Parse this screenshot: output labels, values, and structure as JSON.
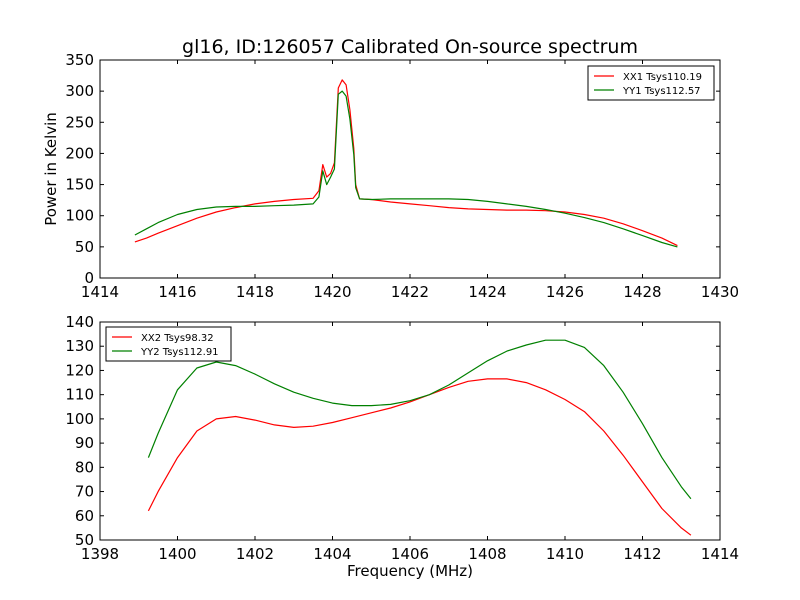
{
  "title": "gl16, ID:126057 Calibrated On-source spectrum",
  "chart_data": [
    {
      "type": "line",
      "ylabel": "Power in Kelvin",
      "xlabel": "",
      "xlim": [
        1414,
        1430
      ],
      "ylim": [
        0,
        350
      ],
      "xticks": [
        1414,
        1416,
        1418,
        1420,
        1422,
        1424,
        1426,
        1428,
        1430
      ],
      "yticks": [
        0,
        50,
        100,
        150,
        200,
        250,
        300,
        350
      ],
      "legend_position": "top-right",
      "grid": false,
      "series": [
        {
          "name": "XX1 Tsys110.19",
          "color": "#ff0000",
          "x": [
            1414.9,
            1415.2,
            1415.5,
            1416.0,
            1416.5,
            1417.0,
            1417.5,
            1418.0,
            1418.5,
            1419.0,
            1419.5,
            1419.65,
            1419.75,
            1419.85,
            1419.95,
            1420.05,
            1420.15,
            1420.25,
            1420.35,
            1420.45,
            1420.55,
            1420.6,
            1420.7,
            1421.0,
            1421.5,
            1422.0,
            1422.5,
            1423.0,
            1423.5,
            1424.0,
            1424.5,
            1425.0,
            1425.5,
            1426.0,
            1426.5,
            1427.0,
            1427.5,
            1428.0,
            1428.5,
            1428.9
          ],
          "values": [
            58,
            64,
            72,
            84,
            96,
            106,
            113,
            119,
            123,
            126,
            128,
            140,
            182,
            162,
            168,
            185,
            305,
            318,
            310,
            270,
            208,
            150,
            127,
            126,
            122,
            119,
            116,
            113,
            111,
            110,
            109,
            109,
            108,
            106,
            102,
            96,
            87,
            76,
            64,
            52
          ]
        },
        {
          "name": "YY1 Tsys112.57",
          "color": "#008000",
          "x": [
            1414.9,
            1415.2,
            1415.5,
            1416.0,
            1416.5,
            1417.0,
            1417.5,
            1418.0,
            1418.5,
            1419.0,
            1419.5,
            1419.65,
            1419.75,
            1419.85,
            1419.95,
            1420.05,
            1420.15,
            1420.25,
            1420.35,
            1420.45,
            1420.55,
            1420.6,
            1420.7,
            1421.0,
            1421.5,
            1422.0,
            1422.5,
            1423.0,
            1423.5,
            1424.0,
            1424.5,
            1425.0,
            1425.5,
            1426.0,
            1426.5,
            1427.0,
            1427.5,
            1428.0,
            1428.5,
            1428.9
          ],
          "values": [
            69,
            79,
            89,
            102,
            110,
            114,
            115,
            115,
            116,
            117,
            119,
            130,
            172,
            150,
            162,
            175,
            295,
            300,
            292,
            255,
            198,
            145,
            127,
            126,
            127,
            127,
            127,
            127,
            126,
            123,
            119,
            115,
            110,
            104,
            97,
            89,
            79,
            68,
            57,
            50
          ]
        }
      ]
    },
    {
      "type": "line",
      "ylabel": "",
      "xlabel": "Frequency (MHz)",
      "xlim": [
        1398,
        1414
      ],
      "ylim": [
        50,
        140
      ],
      "xticks": [
        1398,
        1400,
        1402,
        1404,
        1406,
        1408,
        1410,
        1412,
        1414
      ],
      "yticks": [
        50,
        60,
        70,
        80,
        90,
        100,
        110,
        120,
        130,
        140
      ],
      "legend_position": "top-left",
      "grid": false,
      "series": [
        {
          "name": "XX2 Tsys98.32",
          "color": "#ff0000",
          "x": [
            1399.25,
            1399.5,
            1400.0,
            1400.5,
            1401.0,
            1401.5,
            1402.0,
            1402.5,
            1403.0,
            1403.5,
            1404.0,
            1404.5,
            1405.0,
            1405.5,
            1406.0,
            1406.5,
            1407.0,
            1407.5,
            1408.0,
            1408.5,
            1409.0,
            1409.5,
            1410.0,
            1410.5,
            1411.0,
            1411.5,
            1412.0,
            1412.5,
            1413.0,
            1413.25
          ],
          "values": [
            62,
            70,
            84,
            95,
            100,
            101,
            99.5,
            97.5,
            96.5,
            97,
            98.5,
            100.5,
            102.5,
            104.5,
            107,
            110,
            113,
            115.5,
            116.5,
            116.5,
            115,
            112,
            108,
            103,
            95,
            85,
            74,
            63,
            55,
            52
          ]
        },
        {
          "name": "YY2 Tsys112.91",
          "color": "#008000",
          "x": [
            1399.25,
            1399.5,
            1400.0,
            1400.5,
            1401.0,
            1401.5,
            1402.0,
            1402.5,
            1403.0,
            1403.5,
            1404.0,
            1404.5,
            1405.0,
            1405.5,
            1406.0,
            1406.5,
            1407.0,
            1407.5,
            1408.0,
            1408.5,
            1409.0,
            1409.5,
            1410.0,
            1410.5,
            1411.0,
            1411.5,
            1412.0,
            1412.5,
            1413.0,
            1413.25
          ],
          "values": [
            84,
            94,
            112,
            121,
            123.5,
            122,
            118.5,
            114.5,
            111,
            108.5,
            106.5,
            105.5,
            105.5,
            106,
            107.5,
            110,
            114,
            119,
            124,
            128,
            130.5,
            132.5,
            132.5,
            129.5,
            122,
            111,
            98,
            84,
            72,
            67
          ]
        }
      ]
    }
  ]
}
